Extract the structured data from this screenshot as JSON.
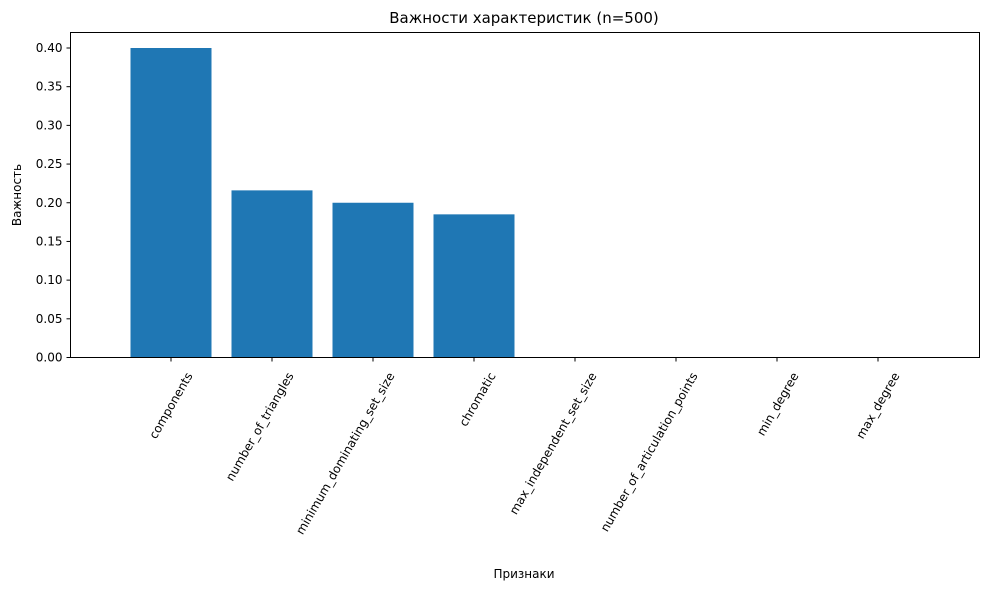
{
  "chart_data": {
    "type": "bar",
    "title": "Важности характеристик (n=500)",
    "xlabel": "Признаки",
    "ylabel": "Важность",
    "categories": [
      "components",
      "number_of_triangles",
      "minimum_dominating_set_size",
      "chromatic",
      "max_independent_set_size",
      "number_of_articulation_points",
      "min_degree",
      "max_degree"
    ],
    "values": [
      0.4,
      0.216,
      0.2,
      0.185,
      0.0,
      0.0,
      0.0,
      0.0
    ],
    "ylim": [
      0.0,
      0.4
    ],
    "yticks": [
      "0.00",
      "0.05",
      "0.10",
      "0.15",
      "0.20",
      "0.25",
      "0.30",
      "0.35",
      "0.40"
    ],
    "bar_color": "#1f77b4",
    "grid": false,
    "legend": "none"
  }
}
